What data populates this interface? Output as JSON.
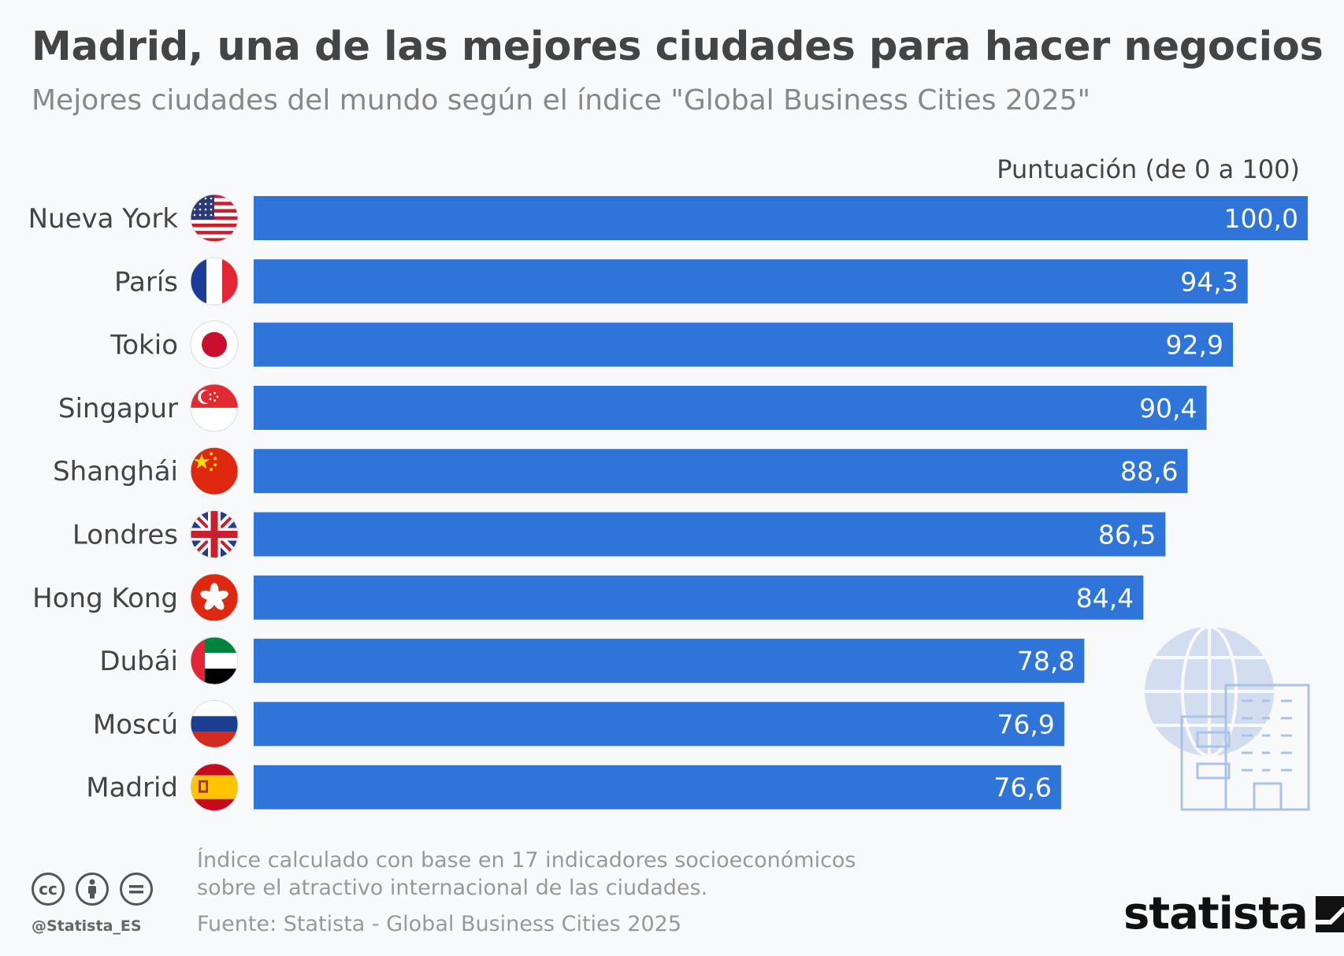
{
  "title": "Madrid, una de las mejores ciudades para hacer negocios",
  "subtitle": "Mejores ciudades del mundo según el índice \"Global Business Cities 2025\"",
  "unit_label": "Puntuación (de 0 a 100)",
  "footnote": {
    "line1": "Índice calculado con base en 17 indicadores socioeconómicos",
    "line2": "sobre el atractivo internacional de las ciudades."
  },
  "source": "Fuente: Statista - Global Business Cities 2025",
  "handle": "@Statista_ES",
  "brand": "statista",
  "colors": {
    "bar": "#2f74d9",
    "bar_label": "#ffffff",
    "category_label": "#444444"
  },
  "chart_data": {
    "type": "bar",
    "orientation": "horizontal",
    "categories": [
      "Nueva York",
      "París",
      "Tokio",
      "Singapur",
      "Shanghái",
      "Londres",
      "Hong Kong",
      "Dubái",
      "Moscú",
      "Madrid"
    ],
    "value_labels": [
      "100,0",
      "94,3",
      "92,9",
      "90,4",
      "88,6",
      "86,5",
      "84,4",
      "78,8",
      "76,9",
      "76,6"
    ],
    "values": [
      100.0,
      94.3,
      92.9,
      90.4,
      88.6,
      86.5,
      84.4,
      78.8,
      76.9,
      76.6
    ],
    "flags": [
      "usa-flag-icon",
      "france-flag-icon",
      "japan-flag-icon",
      "singapore-flag-icon",
      "china-flag-icon",
      "uk-flag-icon",
      "hongkong-flag-icon",
      "uae-flag-icon",
      "russia-flag-icon",
      "spain-flag-icon"
    ],
    "xlim": [
      0,
      100
    ],
    "grid": false,
    "legend": "none"
  }
}
